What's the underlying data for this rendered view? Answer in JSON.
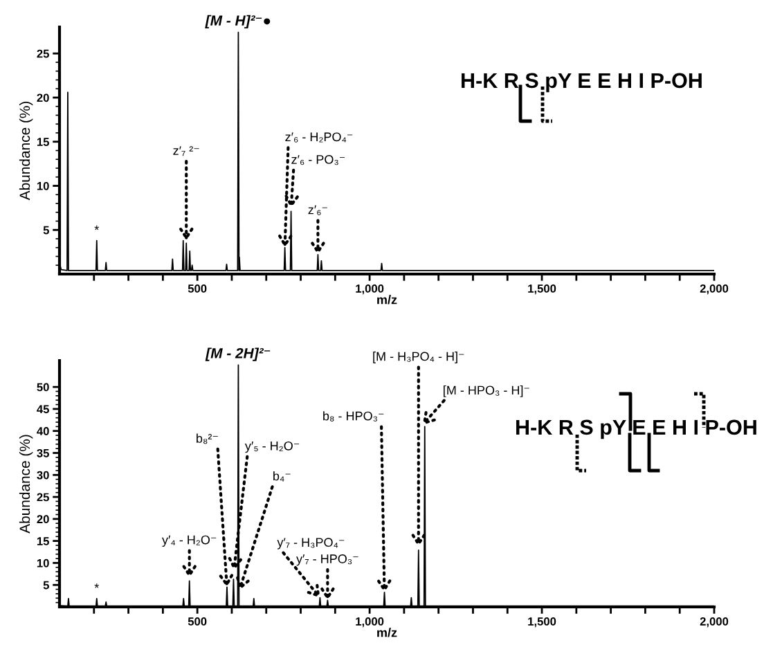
{
  "chart_data": [
    {
      "type": "line",
      "xlabel": "m/z",
      "ylabel": "Abundance (%)",
      "x": [
        100,
        105,
        122,
        124,
        126,
        206,
        208,
        210,
        233,
        235,
        237,
        426,
        428,
        430,
        457,
        459,
        461,
        466,
        468,
        470,
        476,
        478,
        480,
        483,
        485,
        487,
        583,
        585,
        587,
        617,
        619,
        621,
        622,
        624,
        752,
        754,
        756,
        770,
        772,
        774,
        848,
        850,
        852,
        858,
        860,
        862,
        1033,
        1035,
        1037,
        2000
      ],
      "series": [
        {
          "color": "#000000",
          "values": [
            1.2,
            0.5,
            0.4,
            20.6,
            0.4,
            0.4,
            3.8,
            0.4,
            0.4,
            1.3,
            0.4,
            0.4,
            1.7,
            0.4,
            0.4,
            3.8,
            0.4,
            0.4,
            3.5,
            0.4,
            0.4,
            2.6,
            0.4,
            0.4,
            1.0,
            0.4,
            0.4,
            1.1,
            0.4,
            0.4,
            27.4,
            0.4,
            1.9,
            0.4,
            0.4,
            3.0,
            0.4,
            0.4,
            7.1,
            0.4,
            0.4,
            2.2,
            0.4,
            0.4,
            1.5,
            0.4,
            0.4,
            1.2,
            0.4,
            0.4
          ]
        }
      ],
      "xlim": [
        100,
        2000
      ],
      "ylim": [
        0,
        28
      ],
      "xticks": [
        {
          "value": 200,
          "label": null
        },
        {
          "value": 300,
          "label": null
        },
        {
          "value": 400,
          "label": null
        },
        {
          "value": 500,
          "label": "500"
        },
        {
          "value": 600,
          "label": null
        },
        {
          "value": 700,
          "label": null
        },
        {
          "value": 800,
          "label": null
        },
        {
          "value": 900,
          "label": null
        },
        {
          "value": 1000,
          "label": "1,000"
        },
        {
          "value": 1100,
          "label": null
        },
        {
          "value": 1200,
          "label": null
        },
        {
          "value": 1300,
          "label": null
        },
        {
          "value": 1400,
          "label": null
        },
        {
          "value": 1500,
          "label": "1,500"
        },
        {
          "value": 1600,
          "label": null
        },
        {
          "value": 1700,
          "label": null
        },
        {
          "value": 1800,
          "label": null
        },
        {
          "value": 1900,
          "label": null
        },
        {
          "value": 2000,
          "label": "2,000"
        }
      ],
      "yticks": [
        {
          "value": 1,
          "label": null
        },
        {
          "value": 2,
          "label": null
        },
        {
          "value": 3,
          "label": null
        },
        {
          "value": 4,
          "label": null
        },
        5,
        {
          "value": 6,
          "label": null
        },
        {
          "value": 7,
          "label": null
        },
        {
          "value": 8,
          "label": null
        },
        {
          "value": 9,
          "label": null
        },
        10,
        {
          "value": 11,
          "label": null
        },
        {
          "value": 12,
          "label": null
        },
        {
          "value": 13,
          "label": null
        },
        {
          "value": 14,
          "label": null
        },
        15,
        {
          "value": 16,
          "label": null
        },
        {
          "value": 17,
          "label": null
        },
        {
          "value": 18,
          "label": null
        },
        {
          "value": 19,
          "label": null
        },
        20,
        {
          "value": 21,
          "label": null
        },
        {
          "value": 22,
          "label": null
        },
        {
          "value": 23,
          "label": null
        },
        {
          "value": 24,
          "label": null
        },
        25
      ],
      "annotations": [
        {
          "text": "[M - H]²⁻●",
          "x": 619,
          "y": 27.4
        },
        {
          "text": "*",
          "x": 208,
          "y": 3.8
        },
        {
          "text": "z′₇ ²⁻",
          "x": 468,
          "y": 3.8
        },
        {
          "text": "z′₆ - H₂PO₄⁻",
          "x": 754,
          "y": 3.0
        },
        {
          "text": "z′₆ - PO₃⁻",
          "x": 772,
          "y": 7.5
        },
        {
          "text": "z′₆⁻",
          "x": 850,
          "y": 2.2
        },
        "H-K R S pY E E H I P-OH"
      ]
    },
    {
      "type": "line",
      "xlabel": "m/z",
      "ylabel": "Abundance (%)",
      "x": [
        100,
        124,
        126,
        128,
        206,
        208,
        210,
        233,
        235,
        237,
        458,
        460,
        462,
        475,
        477,
        479,
        584,
        586,
        588,
        603,
        605,
        607,
        617,
        619,
        621,
        662,
        664,
        666,
        854,
        856,
        858,
        876,
        878,
        880,
        1041,
        1043,
        1045,
        1119,
        1121,
        1123,
        1140,
        1142,
        1144,
        1158,
        1160,
        1162,
        2000
      ],
      "series": [
        {
          "color": "#000000",
          "values": [
            0.3,
            0.2,
            1.9,
            0.2,
            0.2,
            1.9,
            0.2,
            0.2,
            1.1,
            0.2,
            0.2,
            1.9,
            0.2,
            0.2,
            5.9,
            0.2,
            0.2,
            4.5,
            0.2,
            0.2,
            6.3,
            0.2,
            0.2,
            55,
            0.2,
            0.2,
            1.9,
            0.2,
            0.2,
            2.1,
            0.2,
            0.2,
            1.5,
            0.2,
            0.2,
            3.3,
            0.2,
            0.2,
            2.1,
            0.2,
            0.2,
            12.9,
            0.2,
            0.2,
            41,
            0.2,
            0.2
          ]
        }
      ],
      "xlim": [
        100,
        2000
      ],
      "ylim": [
        0,
        56
      ],
      "xticks": [
        {
          "value": 200,
          "label": null
        },
        {
          "value": 300,
          "label": null
        },
        {
          "value": 400,
          "label": null
        },
        {
          "value": 500,
          "label": "500"
        },
        {
          "value": 600,
          "label": null
        },
        {
          "value": 700,
          "label": null
        },
        {
          "value": 800,
          "label": null
        },
        {
          "value": 900,
          "label": null
        },
        {
          "value": 1000,
          "label": "1,000"
        },
        {
          "value": 1100,
          "label": null
        },
        {
          "value": 1200,
          "label": null
        },
        {
          "value": 1300,
          "label": null
        },
        {
          "value": 1400,
          "label": null
        },
        {
          "value": 1500,
          "label": "1,500"
        },
        {
          "value": 1600,
          "label": null
        },
        {
          "value": 1700,
          "label": null
        },
        {
          "value": 1800,
          "label": null
        },
        {
          "value": 1900,
          "label": null
        },
        {
          "value": 2000,
          "label": "2,000"
        }
      ],
      "yticks": [
        {
          "value": 1,
          "label": null
        },
        {
          "value": 2,
          "label": null
        },
        {
          "value": 3,
          "label": null
        },
        {
          "value": 4,
          "label": null
        },
        5,
        {
          "value": 6,
          "label": null
        },
        {
          "value": 7,
          "label": null
        },
        {
          "value": 8,
          "label": null
        },
        {
          "value": 9,
          "label": null
        },
        10,
        {
          "value": 11,
          "label": null
        },
        {
          "value": 12,
          "label": null
        },
        {
          "value": 13,
          "label": null
        },
        {
          "value": 14,
          "label": null
        },
        15,
        {
          "value": 16,
          "label": null
        },
        {
          "value": 17,
          "label": null
        },
        {
          "value": 18,
          "label": null
        },
        {
          "value": 19,
          "label": null
        },
        20,
        {
          "value": 21,
          "label": null
        },
        {
          "value": 22,
          "label": null
        },
        {
          "value": 23,
          "label": null
        },
        {
          "value": 24,
          "label": null
        },
        25,
        {
          "value": 26,
          "label": null
        },
        {
          "value": 27,
          "label": null
        },
        {
          "value": 28,
          "label": null
        },
        {
          "value": 29,
          "label": null
        },
        30,
        {
          "value": 31,
          "label": null
        },
        {
          "value": 32,
          "label": null
        },
        {
          "value": 33,
          "label": null
        },
        {
          "value": 34,
          "label": null
        },
        35,
        {
          "value": 36,
          "label": null
        },
        {
          "value": 37,
          "label": null
        },
        {
          "value": 38,
          "label": null
        },
        {
          "value": 39,
          "label": null
        },
        40,
        {
          "value": 41,
          "label": null
        },
        {
          "value": 42,
          "label": null
        },
        {
          "value": 43,
          "label": null
        },
        {
          "value": 44,
          "label": null
        },
        45,
        {
          "value": 46,
          "label": null
        },
        {
          "value": 47,
          "label": null
        },
        {
          "value": 48,
          "label": null
        },
        {
          "value": 49,
          "label": null
        },
        50
      ],
      "annotations": [
        {
          "text": "[M - 2H]²⁻",
          "x": 619,
          "y": 55
        },
        {
          "text": "*",
          "x": 208,
          "y": 1.9
        },
        {
          "text": "y′₄ - H₂O⁻",
          "x": 477,
          "y": 6.6
        },
        {
          "text": "b₈²⁻",
          "x": 586,
          "y": 4.5
        },
        {
          "text": "y′₅ - H₂O⁻",
          "x": 606,
          "y": 8.3
        },
        {
          "text": "b₄⁻",
          "x": 622,
          "y": 3.8
        },
        {
          "text": "y′₇ - H₃PO₄⁻",
          "x": 856,
          "y": 2.1
        },
        {
          "text": "y′₇ - HPO₃⁻",
          "x": 878,
          "y": 1.5
        },
        {
          "text": "b₈ - HPO₃⁻",
          "x": 1043,
          "y": 3.3
        },
        {
          "text": "[M - H₃PO₄ - H]⁻",
          "x": 1142,
          "y": 13.7
        },
        {
          "text": "[M - HPO₃ - H]⁻",
          "x": 1154,
          "y": 41.4
        },
        "H-K R S pY E E H I P-OH"
      ]
    }
  ]
}
